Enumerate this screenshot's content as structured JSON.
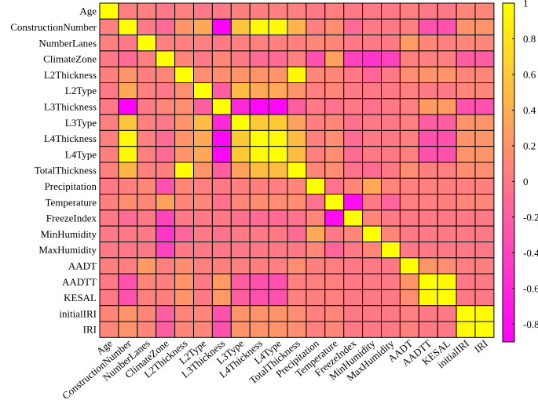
{
  "chart_data": {
    "type": "heatmap",
    "title": "",
    "xlabel": "",
    "ylabel": "",
    "variables": [
      "Age",
      "ConstructionNumber",
      "NumberLanes",
      "ClimateZone",
      "L2Thickness",
      "L2Type",
      "L3Thickness",
      "L3Type",
      "L4Thickness",
      "L4Type",
      "TotalThickness",
      "Precipitation",
      "Temperature",
      "FreezeIndex",
      "MinHumidity",
      "MaxHumidity",
      "AADT",
      "AADTT",
      "KESAL",
      "initialIRI",
      "IRI"
    ],
    "matrix": [
      [
        1,
        0.05,
        0.05,
        0.0,
        0.05,
        0.0,
        0.0,
        0.05,
        0.05,
        0.05,
        0.05,
        0.0,
        0.05,
        0.0,
        0.0,
        0.0,
        0.05,
        0.0,
        0.0,
        0.1,
        0.1
      ],
      [
        0.05,
        1,
        0.0,
        -0.1,
        0.2,
        0.35,
        -0.95,
        0.55,
        0.95,
        0.95,
        0.45,
        0.05,
        0.15,
        -0.1,
        0.0,
        0.0,
        0.05,
        -0.3,
        -0.3,
        0.2,
        0.2
      ],
      [
        0.05,
        0.0,
        1,
        0.05,
        0.05,
        0.05,
        0.0,
        0.05,
        0.05,
        0.05,
        0.05,
        0.1,
        0.1,
        0.0,
        0.0,
        0.0,
        0.25,
        0.1,
        0.05,
        0.1,
        0.1
      ],
      [
        0.0,
        -0.1,
        0.05,
        1,
        0.1,
        0.0,
        0.1,
        0.0,
        -0.1,
        -0.1,
        0.05,
        -0.3,
        0.3,
        -0.4,
        -0.5,
        -0.4,
        0.05,
        0.05,
        0.05,
        -0.2,
        -0.2
      ],
      [
        0.05,
        0.2,
        0.05,
        0.1,
        1,
        0.15,
        0.15,
        0.2,
        0.2,
        0.2,
        0.95,
        0.1,
        0.1,
        0.0,
        -0.15,
        0.0,
        0.15,
        0.2,
        0.2,
        0.1,
        0.1
      ],
      [
        0.0,
        0.35,
        0.05,
        0.0,
        0.15,
        1,
        -0.2,
        0.5,
        0.35,
        0.35,
        0.2,
        0.05,
        0.1,
        0.0,
        0.0,
        0.0,
        0.05,
        0.0,
        0.0,
        0.1,
        0.1
      ],
      [
        0.0,
        -0.95,
        0.0,
        0.1,
        0.15,
        -0.2,
        1,
        -0.6,
        -0.85,
        -0.85,
        -0.2,
        0.0,
        -0.05,
        0.0,
        -0.05,
        0.0,
        0.05,
        0.25,
        0.25,
        -0.3,
        -0.3
      ],
      [
        0.05,
        0.55,
        0.05,
        0.0,
        0.2,
        0.5,
        -0.6,
        1,
        0.6,
        0.6,
        0.3,
        0.05,
        0.1,
        -0.05,
        0.0,
        0.0,
        0.05,
        -0.2,
        -0.2,
        0.2,
        0.2
      ],
      [
        0.05,
        0.95,
        0.05,
        -0.1,
        0.2,
        0.35,
        -0.85,
        0.6,
        1,
        0.95,
        0.5,
        0.05,
        0.15,
        -0.1,
        0.0,
        0.0,
        0.05,
        -0.3,
        -0.3,
        0.2,
        0.2
      ],
      [
        0.05,
        0.95,
        0.05,
        -0.1,
        0.2,
        0.35,
        -0.85,
        0.6,
        0.95,
        1,
        0.5,
        0.05,
        0.15,
        -0.1,
        0.0,
        0.0,
        0.05,
        -0.3,
        -0.3,
        0.2,
        0.2
      ],
      [
        0.05,
        0.45,
        0.05,
        0.05,
        0.95,
        0.2,
        -0.2,
        0.3,
        0.5,
        0.5,
        1,
        0.1,
        0.15,
        -0.05,
        -0.1,
        0.0,
        0.15,
        0.05,
        0.05,
        0.15,
        0.15
      ],
      [
        0.0,
        0.05,
        0.1,
        -0.3,
        0.1,
        0.05,
        0.0,
        0.05,
        0.05,
        0.05,
        0.1,
        1,
        -0.05,
        0.1,
        0.35,
        0.1,
        0.05,
        0.05,
        0.05,
        0.05,
        0.05
      ],
      [
        0.05,
        0.15,
        0.1,
        0.3,
        0.1,
        0.1,
        -0.05,
        0.1,
        0.15,
        0.15,
        0.15,
        -0.05,
        1,
        -0.8,
        0.0,
        -0.15,
        0.05,
        0.05,
        0.05,
        0.1,
        0.1
      ],
      [
        0.0,
        -0.1,
        0.0,
        -0.4,
        0.0,
        0.0,
        0.0,
        -0.05,
        -0.1,
        -0.1,
        -0.05,
        0.1,
        -0.8,
        1,
        0.1,
        0.0,
        0.0,
        0.0,
        0.0,
        0.0,
        0.0
      ],
      [
        0.0,
        0.0,
        0.0,
        -0.5,
        -0.15,
        0.0,
        -0.05,
        0.0,
        0.0,
        0.0,
        -0.1,
        0.35,
        0.0,
        0.1,
        1,
        0.1,
        0.0,
        0.0,
        0.0,
        0.0,
        0.0
      ],
      [
        0.0,
        0.0,
        0.0,
        -0.4,
        0.0,
        0.0,
        0.0,
        0.0,
        0.0,
        0.0,
        0.0,
        0.1,
        -0.15,
        0.0,
        0.1,
        1,
        0.0,
        0.0,
        0.0,
        0.0,
        0.0
      ],
      [
        0.05,
        0.05,
        0.25,
        0.05,
        0.15,
        0.05,
        0.05,
        0.05,
        0.05,
        0.05,
        0.15,
        0.05,
        0.05,
        0.0,
        0.0,
        0.0,
        1,
        0.2,
        0.15,
        0.05,
        0.05
      ],
      [
        0.0,
        -0.3,
        0.1,
        0.05,
        0.2,
        0.0,
        0.25,
        -0.2,
        -0.3,
        -0.3,
        0.05,
        0.05,
        0.05,
        0.0,
        0.0,
        0.0,
        0.2,
        1,
        0.95,
        0.0,
        0.0
      ],
      [
        0.0,
        -0.3,
        0.05,
        0.05,
        0.2,
        0.0,
        0.25,
        -0.2,
        -0.3,
        -0.3,
        0.05,
        0.05,
        0.05,
        0.0,
        0.0,
        0.0,
        0.15,
        0.95,
        1,
        0.0,
        0.0
      ],
      [
        0.1,
        0.2,
        0.1,
        -0.2,
        0.1,
        0.1,
        -0.3,
        0.2,
        0.2,
        0.2,
        0.15,
        0.05,
        0.1,
        0.0,
        0.0,
        0.0,
        0.05,
        0.0,
        0.0,
        1,
        0.95
      ],
      [
        0.1,
        0.2,
        0.1,
        -0.2,
        0.1,
        0.1,
        -0.3,
        0.2,
        0.2,
        0.2,
        0.15,
        0.05,
        0.1,
        0.0,
        0.0,
        0.0,
        0.05,
        0.0,
        0.0,
        0.95,
        1
      ]
    ],
    "colorbar": {
      "ticks": [
        "1",
        "0.8",
        "0.6",
        "0.4",
        "0.2",
        "0",
        "-0.2",
        "-0.4",
        "-0.6",
        "-0.8"
      ],
      "tick_values": [
        1,
        0.8,
        0.6,
        0.4,
        0.2,
        0,
        -0.2,
        -0.4,
        -0.6,
        -0.8
      ],
      "range": [
        -0.9,
        1.0
      ],
      "colormap": "spring",
      "low_color": "#ff00ff",
      "high_color": "#ffff00"
    },
    "grid": true,
    "legend": "right (colorbar)"
  }
}
